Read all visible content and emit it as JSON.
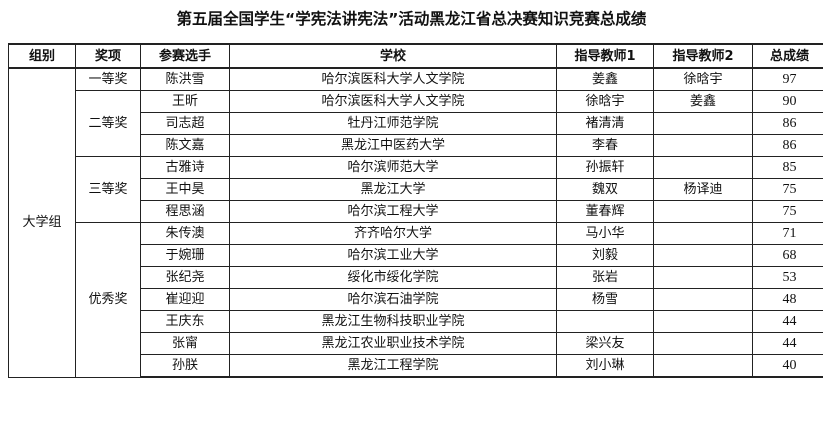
{
  "title": "第五届全国学生“学宪法讲宪法”活动黑龙江省总决赛知识竞赛总成绩",
  "headers": [
    "组别",
    "奖项",
    "参赛选手",
    "学校",
    "指导教师1",
    "指导教师2",
    "总成绩"
  ],
  "group": "大学组",
  "awards": [
    "一等奖",
    "二等奖",
    "三等奖",
    "优秀奖"
  ],
  "rows": [
    {
      "name": "陈洪雪",
      "school": "哈尔滨医科大学人文学院",
      "t1": "姜鑫",
      "t2": "徐晗宇",
      "score": "97"
    },
    {
      "name": "王昕",
      "school": "哈尔滨医科大学人文学院",
      "t1": "徐晗宇",
      "t2": "姜鑫",
      "score": "90"
    },
    {
      "name": "司志超",
      "school": "牡丹江师范学院",
      "t1": "褚清清",
      "t2": "",
      "score": "86"
    },
    {
      "name": "陈文嘉",
      "school": "黑龙江中医药大学",
      "t1": "李春",
      "t2": "",
      "score": "86"
    },
    {
      "name": "古雅诗",
      "school": "哈尔滨师范大学",
      "t1": "孙振轩",
      "t2": "",
      "score": "85"
    },
    {
      "name": "王中昊",
      "school": "黑龙江大学",
      "t1": "魏双",
      "t2": "杨译迪",
      "score": "75"
    },
    {
      "name": "程思涵",
      "school": "哈尔滨工程大学",
      "t1": "董春辉",
      "t2": "",
      "score": "75"
    },
    {
      "name": "朱传澳",
      "school": "齐齐哈尔大学",
      "t1": "马小华",
      "t2": "",
      "score": "71"
    },
    {
      "name": "于婉珊",
      "school": "哈尔滨工业大学",
      "t1": "刘毅",
      "t2": "",
      "score": "68"
    },
    {
      "name": "张纪尧",
      "school": "绥化市绥化学院",
      "t1": "张岩",
      "t2": "",
      "score": "53"
    },
    {
      "name": "崔迎迎",
      "school": "哈尔滨石油学院",
      "t1": "杨雪",
      "t2": "",
      "score": "48"
    },
    {
      "name": "王庆东",
      "school": "黑龙江生物科技职业学院",
      "t1": "",
      "t2": "",
      "score": "44"
    },
    {
      "name": "张甯",
      "school": "黑龙江农业职业技术学院",
      "t1": "梁兴友",
      "t2": "",
      "score": "44"
    },
    {
      "name": "孙朕",
      "school": "黑龙江工程学院",
      "t1": "刘小琳",
      "t2": "",
      "score": "40"
    }
  ]
}
